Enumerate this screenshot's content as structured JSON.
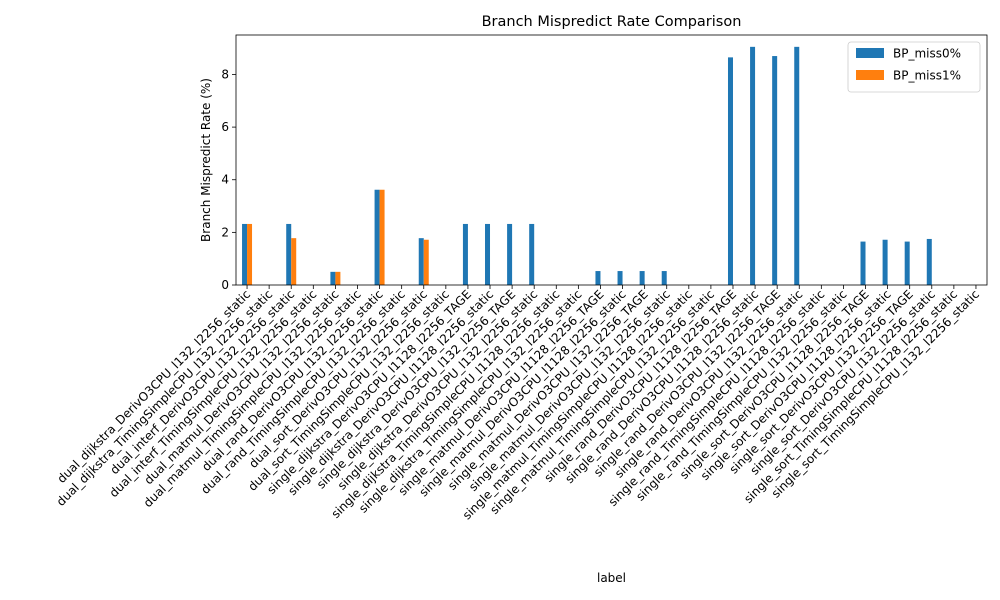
{
  "chart_data": {
    "type": "bar",
    "title": "Branch Mispredict Rate Comparison",
    "xlabel": "label",
    "ylabel": "Branch Mispredict Rate (%)",
    "ylim": [
      0,
      9.5
    ],
    "yticks": [
      0,
      2,
      4,
      6,
      8
    ],
    "legend_position": "top-right",
    "categories": [
      "dual_dijkstra_DerivO3CPU_l132_l2256_static",
      "dual_dijkstra_TimingSimpleCPU_l132_l2256_static",
      "dual_interf_DerivO3CPU_l132_l2256_static",
      "dual_interf_TimingSimpleCPU_l132_l2256_static",
      "dual_matmul_DerivO3CPU_l132_l2256_static",
      "dual_matmul_TimingSimpleCPU_l132_l2256_static",
      "dual_rand_DerivO3CPU_l132_l2256_static",
      "dual_rand_TimingSimpleCPU_l132_l2256_static",
      "dual_sort_DerivO3CPU_l132_l2256_static",
      "dual_sort_TimingSimpleCPU_l132_l2256_static",
      "single_dijkstra_DerivO3CPU_l1128_l2256_TAGE",
      "single_dijkstra_DerivO3CPU_l1128_l2256_static",
      "single_dijkstra_DerivO3CPU_l132_l2256_TAGE",
      "single_dijkstra_DerivO3CPU_l132_l2256_static",
      "single_dijkstra_TimingSimpleCPU_l1128_l2256_static",
      "single_dijkstra_TimingSimpleCPU_l132_l2256_static",
      "single_matmul_DerivO3CPU_l1128_l2256_TAGE",
      "single_matmul_DerivO3CPU_l1128_l2256_static",
      "single_matmul_DerivO3CPU_l132_l2256_TAGE",
      "single_matmul_DerivO3CPU_l132_l2256_static",
      "single_matmul_TimingSimpleCPU_l1128_l2256_static",
      "single_matmul_TimingSimpleCPU_l132_l2256_static",
      "single_rand_DerivO3CPU_l1128_l2256_TAGE",
      "single_rand_DerivO3CPU_l1128_l2256_static",
      "single_rand_DerivO3CPU_l132_l2256_TAGE",
      "single_rand_DerivO3CPU_l132_l2256_static",
      "single_rand_TimingSimpleCPU_l1128_l2256_static",
      "single_rand_TimingSimpleCPU_l132_l2256_static",
      "single_sort_DerivO3CPU_l1128_l2256_TAGE",
      "single_sort_DerivO3CPU_l1128_l2256_static",
      "single_sort_DerivO3CPU_l132_l2256_TAGE",
      "single_sort_DerivO3CPU_l132_l2256_static",
      "single_sort_TimingSimpleCPU_l1128_l2256_static",
      "single_sort_TimingSimpleCPU_l132_l2256_static"
    ],
    "series": [
      {
        "name": "BP_miss0%",
        "color": "#1f77b4",
        "values": [
          2.32,
          0,
          2.32,
          0,
          0.5,
          0,
          3.62,
          0,
          1.78,
          0,
          2.32,
          2.32,
          2.32,
          2.32,
          0,
          0,
          0.53,
          0.53,
          0.53,
          0.53,
          0,
          0,
          8.65,
          9.05,
          8.7,
          9.05,
          0,
          0,
          1.65,
          1.72,
          1.65,
          1.75,
          0,
          0
        ]
      },
      {
        "name": "BP_miss1%",
        "color": "#ff7f0e",
        "values": [
          2.32,
          0,
          1.78,
          0,
          0.5,
          0,
          3.62,
          0,
          1.72,
          0,
          0,
          0,
          0,
          0,
          0,
          0,
          0,
          0,
          0,
          0,
          0,
          0,
          0,
          0,
          0,
          0,
          0,
          0,
          0,
          0,
          0,
          0,
          0,
          0
        ]
      }
    ]
  }
}
